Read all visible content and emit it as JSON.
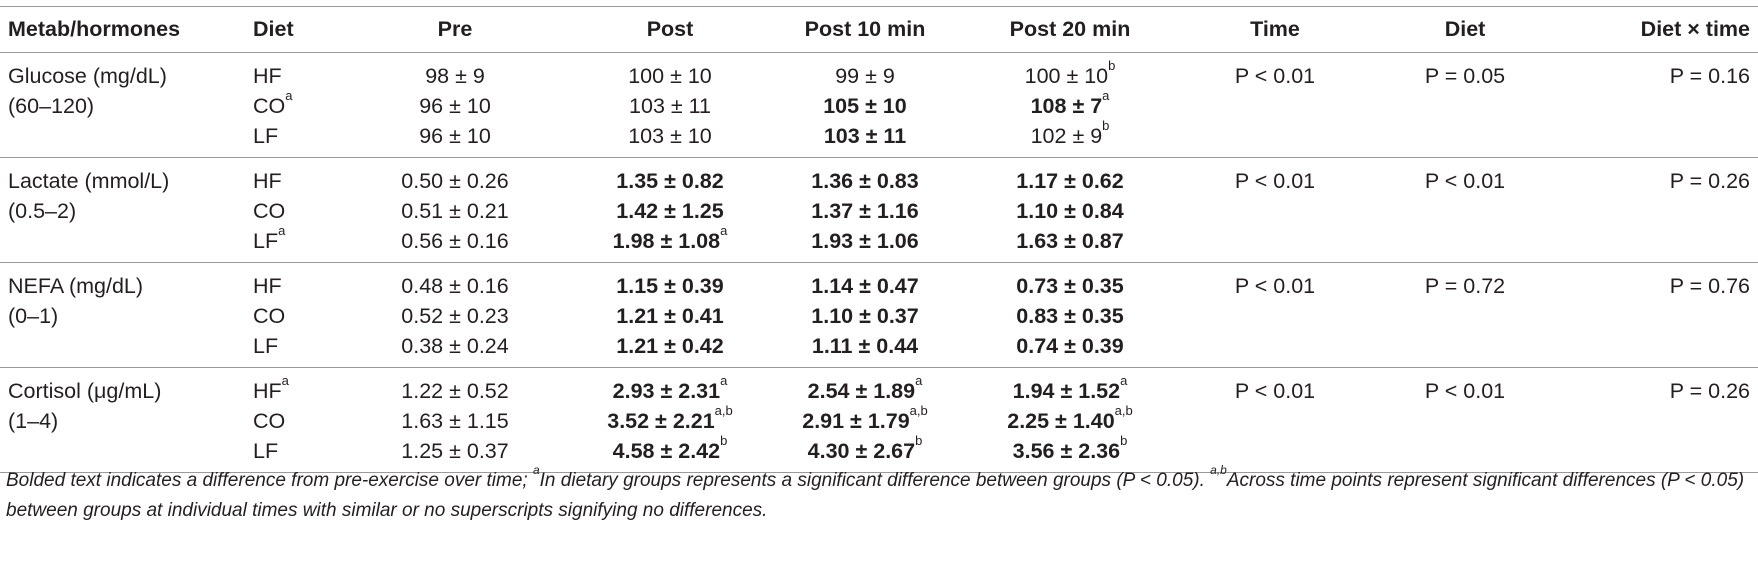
{
  "headers": [
    "Metab/hormones",
    "Diet",
    "Pre",
    "Post",
    "Post 10 min",
    "Post 20 min",
    "Time",
    "Diet",
    "Diet × time"
  ],
  "groups": [
    {
      "name_lines": [
        "Glucose (mg/dL)",
        "(60–120)"
      ],
      "rows": [
        {
          "diet": "HF",
          "diet_sup": "",
          "pre": {
            "v": "98 ± 9",
            "b": false,
            "s": ""
          },
          "post": {
            "v": "100 ± 10",
            "b": false,
            "s": ""
          },
          "p10": {
            "v": "99 ± 9",
            "b": false,
            "s": ""
          },
          "p20": {
            "v": "100 ± 10",
            "b": false,
            "s": "b"
          }
        },
        {
          "diet": "CO",
          "diet_sup": "a",
          "pre": {
            "v": "96 ± 10",
            "b": false,
            "s": ""
          },
          "post": {
            "v": "103 ± 11",
            "b": false,
            "s": ""
          },
          "p10": {
            "v": "105 ± 10",
            "b": true,
            "s": ""
          },
          "p20": {
            "v": "108 ± 7",
            "b": true,
            "s": "a"
          }
        },
        {
          "diet": "LF",
          "diet_sup": "",
          "pre": {
            "v": "96 ± 10",
            "b": false,
            "s": ""
          },
          "post": {
            "v": "103 ± 10",
            "b": false,
            "s": ""
          },
          "p10": {
            "v": "103 ± 11",
            "b": true,
            "s": ""
          },
          "p20": {
            "v": "102 ± 9",
            "b": false,
            "s": "b"
          }
        }
      ],
      "time": "P < 0.01",
      "diet_p": "P = 0.05",
      "interaction": "P = 0.16"
    },
    {
      "name_lines": [
        "Lactate (mmol/L)",
        "(0.5–2)"
      ],
      "rows": [
        {
          "diet": "HF",
          "diet_sup": "",
          "pre": {
            "v": "0.50 ± 0.26",
            "b": false,
            "s": ""
          },
          "post": {
            "v": "1.35 ± 0.82",
            "b": true,
            "s": ""
          },
          "p10": {
            "v": "1.36 ± 0.83",
            "b": true,
            "s": ""
          },
          "p20": {
            "v": "1.17 ± 0.62",
            "b": true,
            "s": ""
          }
        },
        {
          "diet": "CO",
          "diet_sup": "",
          "pre": {
            "v": "0.51 ± 0.21",
            "b": false,
            "s": ""
          },
          "post": {
            "v": "1.42 ± 1.25",
            "b": true,
            "s": ""
          },
          "p10": {
            "v": "1.37 ± 1.16",
            "b": true,
            "s": ""
          },
          "p20": {
            "v": "1.10 ± 0.84",
            "b": true,
            "s": ""
          }
        },
        {
          "diet": "LF",
          "diet_sup": "a",
          "pre": {
            "v": "0.56 ± 0.16",
            "b": false,
            "s": ""
          },
          "post": {
            "v": "1.98 ± 1.08",
            "b": true,
            "s": "a"
          },
          "p10": {
            "v": "1.93 ± 1.06",
            "b": true,
            "s": ""
          },
          "p20": {
            "v": "1.63 ± 0.87",
            "b": true,
            "s": ""
          }
        }
      ],
      "time": "P < 0.01",
      "diet_p": "P < 0.01",
      "interaction": "P = 0.26"
    },
    {
      "name_lines": [
        "NEFA (mg/dL)",
        "(0–1)"
      ],
      "rows": [
        {
          "diet": "HF",
          "diet_sup": "",
          "pre": {
            "v": "0.48 ± 0.16",
            "b": false,
            "s": ""
          },
          "post": {
            "v": "1.15 ± 0.39",
            "b": true,
            "s": ""
          },
          "p10": {
            "v": "1.14 ± 0.47",
            "b": true,
            "s": ""
          },
          "p20": {
            "v": "0.73 ± 0.35",
            "b": true,
            "s": ""
          }
        },
        {
          "diet": "CO",
          "diet_sup": "",
          "pre": {
            "v": "0.52 ± 0.23",
            "b": false,
            "s": ""
          },
          "post": {
            "v": "1.21 ± 0.41",
            "b": true,
            "s": ""
          },
          "p10": {
            "v": "1.10 ± 0.37",
            "b": true,
            "s": ""
          },
          "p20": {
            "v": "0.83 ± 0.35",
            "b": true,
            "s": ""
          }
        },
        {
          "diet": "LF",
          "diet_sup": "",
          "pre": {
            "v": "0.38 ± 0.24",
            "b": false,
            "s": ""
          },
          "post": {
            "v": "1.21 ± 0.42",
            "b": true,
            "s": ""
          },
          "p10": {
            "v": "1.11 ± 0.44",
            "b": true,
            "s": ""
          },
          "p20": {
            "v": "0.74 ± 0.39",
            "b": true,
            "s": ""
          }
        }
      ],
      "time": "P < 0.01",
      "diet_p": "P = 0.72",
      "interaction": "P = 0.76"
    },
    {
      "name_lines": [
        "Cortisol (μg/mL)",
        "(1–4)"
      ],
      "rows": [
        {
          "diet": "HF",
          "diet_sup": "a",
          "pre": {
            "v": "1.22 ± 0.52",
            "b": false,
            "s": ""
          },
          "post": {
            "v": "2.93 ± 2.31",
            "b": true,
            "s": "a"
          },
          "p10": {
            "v": "2.54 ± 1.89",
            "b": true,
            "s": "a"
          },
          "p20": {
            "v": "1.94 ± 1.52",
            "b": true,
            "s": "a"
          }
        },
        {
          "diet": "CO",
          "diet_sup": "",
          "pre": {
            "v": "1.63 ± 1.15",
            "b": false,
            "s": ""
          },
          "post": {
            "v": "3.52 ± 2.21",
            "b": true,
            "s": "a,b"
          },
          "p10": {
            "v": "2.91 ± 1.79",
            "b": true,
            "s": "a,b"
          },
          "p20": {
            "v": "2.25 ± 1.40",
            "b": true,
            "s": "a,b"
          }
        },
        {
          "diet": "LF",
          "diet_sup": "",
          "pre": {
            "v": "1.25 ± 0.37",
            "b": false,
            "s": ""
          },
          "post": {
            "v": "4.58 ± 2.42",
            "b": true,
            "s": "b"
          },
          "p10": {
            "v": "4.30 ± 2.67",
            "b": true,
            "s": "b"
          },
          "p20": {
            "v": "3.56 ± 2.36",
            "b": true,
            "s": "b"
          }
        }
      ],
      "time": "P < 0.01",
      "diet_p": "P < 0.01",
      "interaction": "P = 0.26"
    }
  ],
  "footnote": {
    "part1": "Bolded text indicates a difference from pre-exercise over time; ",
    "sup1": "a",
    "part2": "In dietary groups represents a significant difference between groups (P < 0.05). ",
    "sup2": "a,b",
    "part3": "Across time points represent significant differences (P < 0.05) between groups at individual times with similar or no superscripts signifying no differences."
  }
}
